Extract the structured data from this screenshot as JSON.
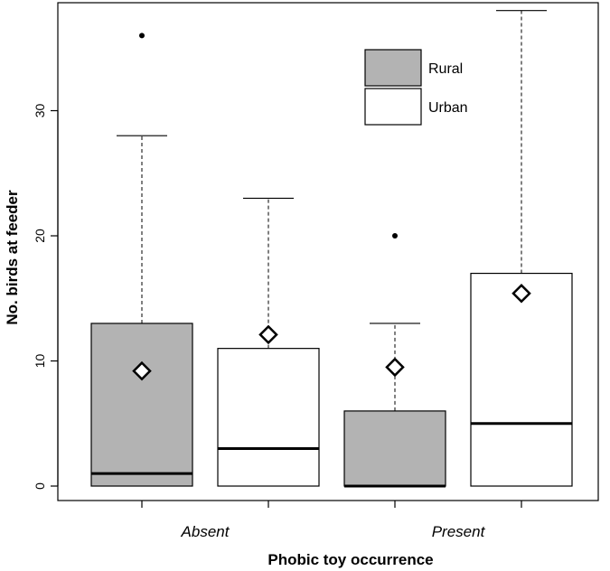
{
  "chart_data": {
    "type": "boxplot",
    "xlabel": "Phobic toy occurrence",
    "ylabel": "No. birds at feeder",
    "ylim": [
      0,
      38
    ],
    "yticks": [
      0,
      10,
      20,
      30
    ],
    "categories": [
      "Absent",
      "Present"
    ],
    "legend": {
      "placement": "top-right",
      "entries": [
        "Rural",
        "Urban"
      ]
    },
    "colors": {
      "Rural": "#b3b3b3",
      "Urban": "#ffffff",
      "line": "#000000"
    },
    "boxes": [
      {
        "category": "Absent",
        "series": "Rural",
        "min": 0,
        "q1": 0,
        "median": 1,
        "q3": 13,
        "upper_whisker": 28,
        "mean": 9.2,
        "outliers": [
          36
        ]
      },
      {
        "category": "Absent",
        "series": "Urban",
        "min": 0,
        "q1": 0,
        "median": 3,
        "q3": 11,
        "upper_whisker": 23,
        "mean": 12.1,
        "outliers": []
      },
      {
        "category": "Present",
        "series": "Rural",
        "min": 0,
        "q1": 0,
        "median": 0,
        "q3": 6,
        "upper_whisker": 13,
        "mean": 9.5,
        "outliers": [
          20
        ]
      },
      {
        "category": "Present",
        "series": "Urban",
        "min": 0,
        "q1": 0,
        "median": 5,
        "q3": 17,
        "upper_whisker": 38,
        "mean": 15.4,
        "outliers": []
      }
    ]
  }
}
